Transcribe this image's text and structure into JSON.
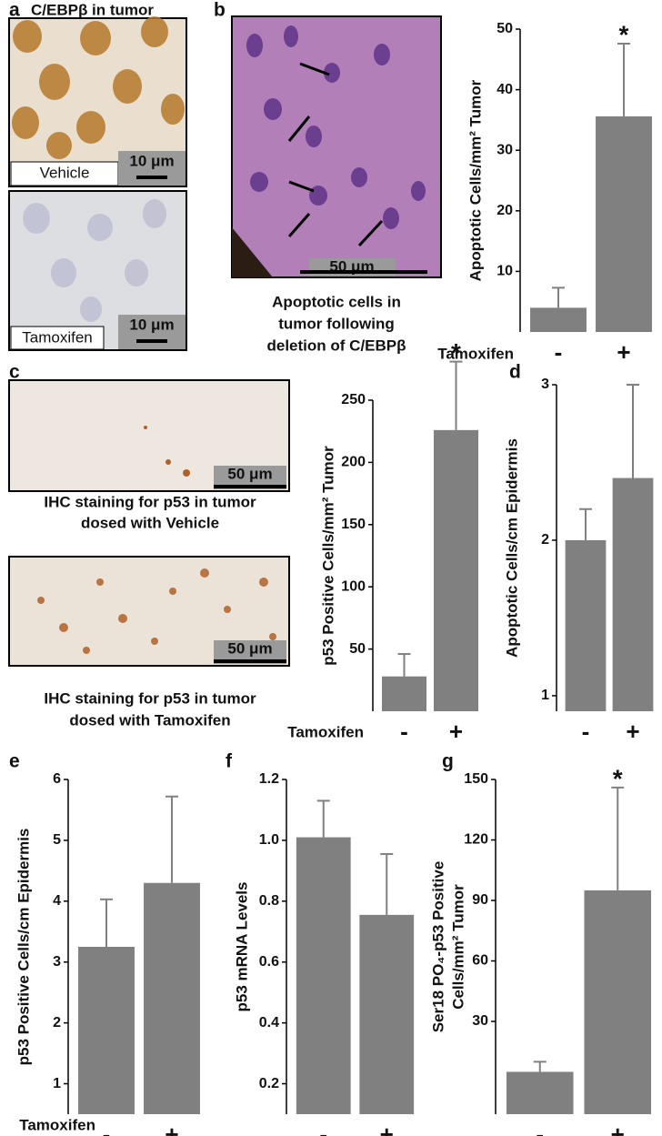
{
  "panel_labels": [
    "a",
    "b",
    "c",
    "d",
    "e",
    "f",
    "g"
  ],
  "images": {
    "a_title": "C/EBPβ in tumor",
    "a_top_label": "Vehicle",
    "a_top_scale": "10 μm",
    "a_bottom_label": "Tamoxifen",
    "a_bottom_scale": "10 μm",
    "b_scale": "50 μm",
    "b_caption": [
      "Apoptotic cells in",
      "tumor following",
      "deletion of C/EBPβ"
    ],
    "c_top_scale": "50 μm",
    "c_top_caption": [
      "IHC staining for p53 in tumor",
      "dosed with Vehicle"
    ],
    "c_bottom_scale": "50 μm",
    "c_bottom_caption": [
      "IHC staining for p53 in tumor",
      "dosed with Tamoxifen"
    ]
  },
  "chart_data": [
    {
      "type": "bar",
      "ylabel": [
        "Apoptotic Cells/mm² Tumor"
      ],
      "xlabel": "Tamoxifen",
      "categories": [
        "-",
        "+"
      ],
      "values": [
        4,
        35.6
      ],
      "errors": [
        3.3,
        12
      ],
      "value_annotations": [
        null,
        "*"
      ],
      "color": "#808080",
      "ylim": [
        0,
        50
      ],
      "yticks": [
        10,
        20,
        30,
        40,
        50
      ]
    },
    {
      "type": "bar",
      "ylabel": [
        "p53 Positive  Cells/mm² Tumor"
      ],
      "xlabel": "Tamoxifen",
      "categories": [
        "-",
        "+"
      ],
      "values": [
        28,
        226
      ],
      "errors": [
        18,
        55
      ],
      "value_annotations": [
        null,
        "*"
      ],
      "color": "#808080",
      "ylim": [
        0,
        250
      ],
      "yticks": [
        50,
        100,
        150,
        200,
        250
      ]
    },
    {
      "type": "bar",
      "ylabel": [
        "Apoptotic Cells/cm Epidermis"
      ],
      "categories": [
        "-",
        "+"
      ],
      "values": [
        2.0,
        2.4
      ],
      "errors": [
        0.2,
        0.6
      ],
      "color": "#808080",
      "ylim": [
        0.9,
        3
      ],
      "yticks": [
        1,
        2,
        3
      ]
    },
    {
      "type": "bar",
      "ylabel": [
        "p53 Positive  Cells/cm Epidermis"
      ],
      "xlabel": "Tamoxifen",
      "categories": [
        "-",
        "+"
      ],
      "values": [
        3.25,
        4.3
      ],
      "errors": [
        0.78,
        1.42
      ],
      "color": "#808080",
      "ylim": [
        0.5,
        6
      ],
      "yticks": [
        1,
        2,
        3,
        4,
        5,
        6
      ]
    },
    {
      "type": "bar",
      "ylabel": [
        "p53 mRNA Levels"
      ],
      "categories": [
        "-",
        "+"
      ],
      "values": [
        1.01,
        0.755
      ],
      "errors": [
        0.12,
        0.2
      ],
      "color": "#808080",
      "ylim": [
        0.1,
        1.2
      ],
      "yticks": [
        0.2,
        0.4,
        0.6,
        0.8,
        {
          "value": 1,
          "label": "1.0"
        },
        1.2
      ]
    },
    {
      "type": "bar",
      "ylabel": [
        "Ser18 PO₄-p53 Positive",
        "Cells/mm² Tumor"
      ],
      "categories": [
        "-",
        "+"
      ],
      "values": [
        5,
        95
      ],
      "errors": [
        5,
        51
      ],
      "value_annotations": [
        null,
        "*"
      ],
      "color": "#808080",
      "ylim": [
        -16,
        150
      ],
      "yticks": [
        30,
        60,
        90,
        120,
        150
      ]
    }
  ]
}
